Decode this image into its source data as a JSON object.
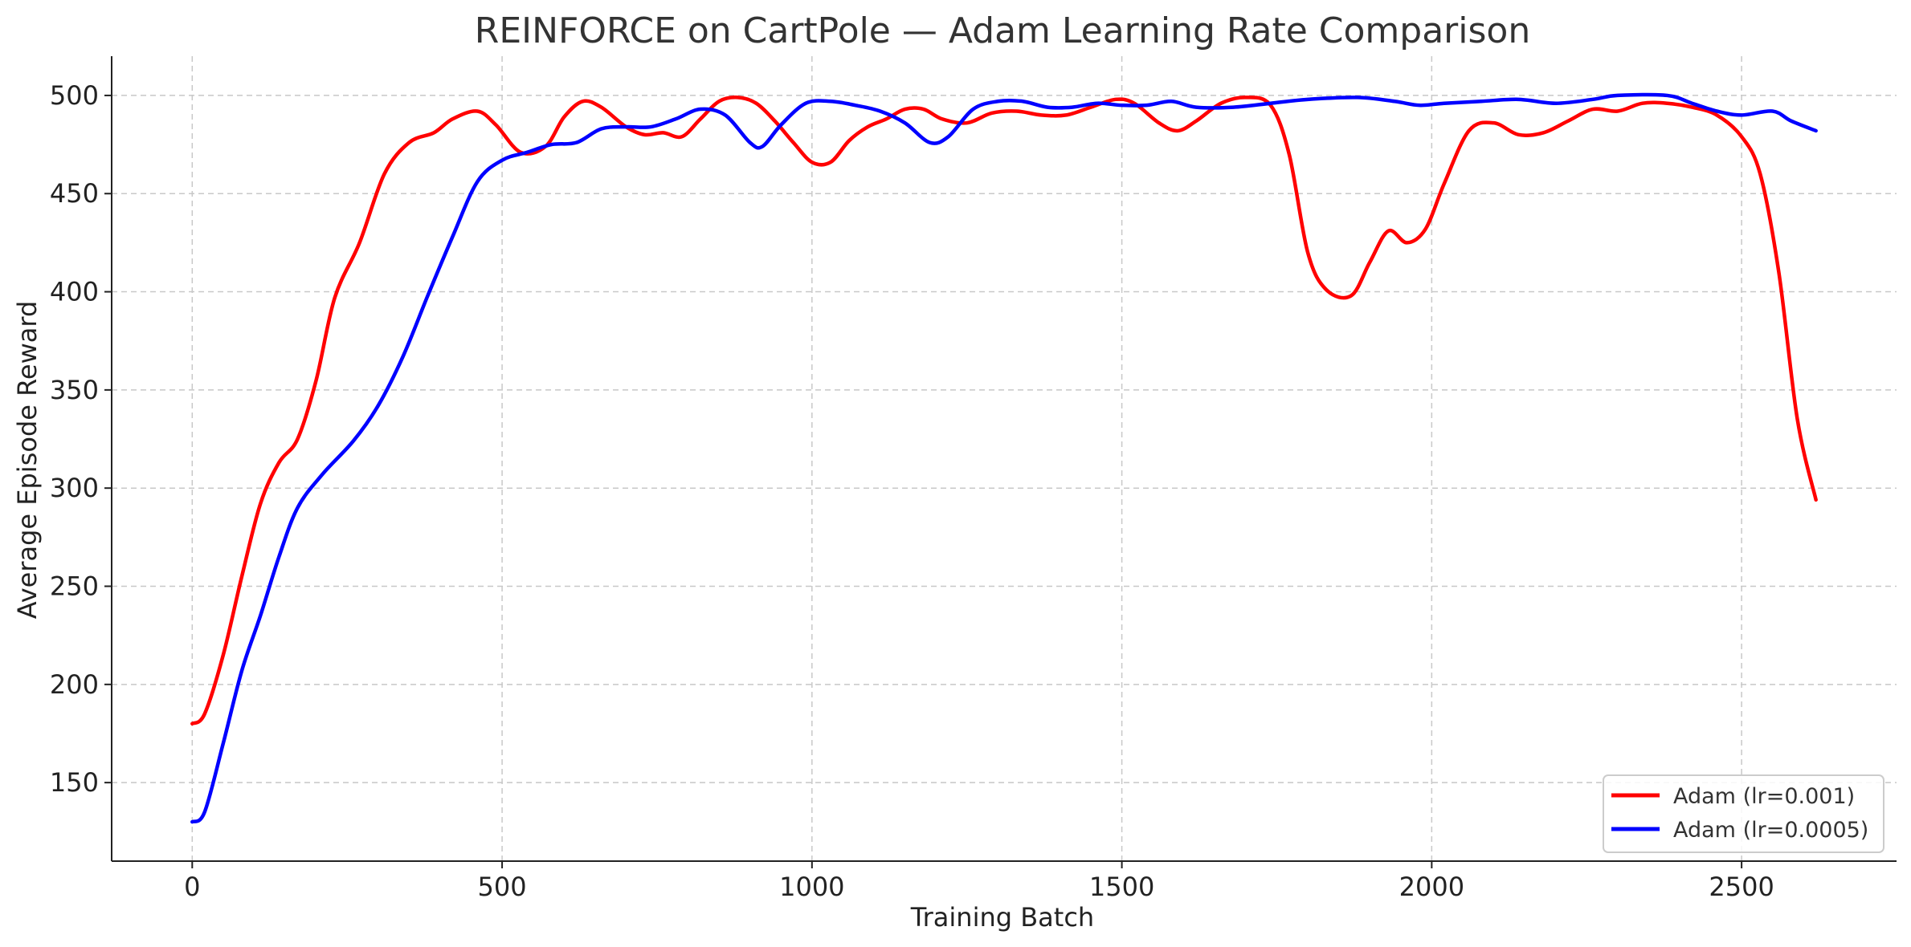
{
  "chart_data": {
    "type": "line",
    "title": "REINFORCE on CartPole — Adam Learning Rate Comparison",
    "xlabel": "Training Batch",
    "ylabel": "Average Episode Reward",
    "xlim": [
      -130,
      2750
    ],
    "ylim": [
      110,
      520
    ],
    "xticks": [
      0,
      500,
      1000,
      1500,
      2000,
      2500
    ],
    "yticks": [
      150,
      200,
      250,
      300,
      350,
      400,
      450,
      500
    ],
    "grid": true,
    "legend_position": "lower-right",
    "series": [
      {
        "name": "Adam (lr=0.001)",
        "color": "#ff0000",
        "points": [
          [
            0,
            180
          ],
          [
            20,
            185
          ],
          [
            50,
            215
          ],
          [
            80,
            255
          ],
          [
            110,
            292
          ],
          [
            140,
            313
          ],
          [
            170,
            325
          ],
          [
            200,
            355
          ],
          [
            230,
            397
          ],
          [
            270,
            425
          ],
          [
            310,
            460
          ],
          [
            350,
            476
          ],
          [
            390,
            481
          ],
          [
            420,
            488
          ],
          [
            460,
            492
          ],
          [
            490,
            485
          ],
          [
            530,
            471
          ],
          [
            570,
            474
          ],
          [
            600,
            489
          ],
          [
            630,
            497
          ],
          [
            660,
            494
          ],
          [
            700,
            484
          ],
          [
            730,
            480
          ],
          [
            760,
            481
          ],
          [
            790,
            479
          ],
          [
            820,
            488
          ],
          [
            850,
            497
          ],
          [
            880,
            499
          ],
          [
            910,
            496
          ],
          [
            940,
            487
          ],
          [
            970,
            476
          ],
          [
            1000,
            466
          ],
          [
            1030,
            466
          ],
          [
            1060,
            477
          ],
          [
            1090,
            484
          ],
          [
            1120,
            488
          ],
          [
            1150,
            493
          ],
          [
            1180,
            493
          ],
          [
            1210,
            488
          ],
          [
            1250,
            486
          ],
          [
            1290,
            491
          ],
          [
            1330,
            492
          ],
          [
            1370,
            490
          ],
          [
            1410,
            490
          ],
          [
            1450,
            494
          ],
          [
            1490,
            498
          ],
          [
            1520,
            496
          ],
          [
            1560,
            486
          ],
          [
            1590,
            482
          ],
          [
            1620,
            487
          ],
          [
            1660,
            496
          ],
          [
            1700,
            499
          ],
          [
            1740,
            495
          ],
          [
            1770,
            470
          ],
          [
            1800,
            420
          ],
          [
            1830,
            401
          ],
          [
            1870,
            398
          ],
          [
            1900,
            415
          ],
          [
            1930,
            431
          ],
          [
            1960,
            425
          ],
          [
            1990,
            432
          ],
          [
            2020,
            455
          ],
          [
            2060,
            482
          ],
          [
            2100,
            486
          ],
          [
            2140,
            480
          ],
          [
            2180,
            481
          ],
          [
            2220,
            487
          ],
          [
            2260,
            493
          ],
          [
            2300,
            492
          ],
          [
            2340,
            496
          ],
          [
            2380,
            496
          ],
          [
            2420,
            494
          ],
          [
            2460,
            490
          ],
          [
            2500,
            479
          ],
          [
            2530,
            460
          ],
          [
            2560,
            410
          ],
          [
            2590,
            335
          ],
          [
            2620,
            294
          ]
        ]
      },
      {
        "name": "Adam (lr=0.0005)",
        "color": "#0000ff",
        "points": [
          [
            0,
            130
          ],
          [
            20,
            135
          ],
          [
            50,
            170
          ],
          [
            80,
            207
          ],
          [
            110,
            235
          ],
          [
            140,
            265
          ],
          [
            170,
            290
          ],
          [
            210,
            307
          ],
          [
            260,
            324
          ],
          [
            300,
            342
          ],
          [
            340,
            367
          ],
          [
            380,
            398
          ],
          [
            420,
            428
          ],
          [
            460,
            456
          ],
          [
            500,
            467
          ],
          [
            540,
            471
          ],
          [
            580,
            475
          ],
          [
            620,
            476
          ],
          [
            660,
            483
          ],
          [
            700,
            484
          ],
          [
            740,
            484
          ],
          [
            780,
            488
          ],
          [
            820,
            493
          ],
          [
            860,
            490
          ],
          [
            900,
            476
          ],
          [
            920,
            474
          ],
          [
            950,
            485
          ],
          [
            990,
            496
          ],
          [
            1030,
            497
          ],
          [
            1070,
            495
          ],
          [
            1110,
            492
          ],
          [
            1150,
            486
          ],
          [
            1190,
            476
          ],
          [
            1220,
            479
          ],
          [
            1260,
            493
          ],
          [
            1300,
            497
          ],
          [
            1340,
            497
          ],
          [
            1380,
            494
          ],
          [
            1420,
            494
          ],
          [
            1460,
            496
          ],
          [
            1500,
            495
          ],
          [
            1540,
            495
          ],
          [
            1580,
            497
          ],
          [
            1620,
            494
          ],
          [
            1680,
            494
          ],
          [
            1740,
            496
          ],
          [
            1800,
            498
          ],
          [
            1880,
            499
          ],
          [
            1940,
            497
          ],
          [
            1980,
            495
          ],
          [
            2020,
            496
          ],
          [
            2080,
            497
          ],
          [
            2140,
            498
          ],
          [
            2200,
            496
          ],
          [
            2260,
            498
          ],
          [
            2300,
            500
          ],
          [
            2380,
            500
          ],
          [
            2420,
            496
          ],
          [
            2460,
            492
          ],
          [
            2500,
            490
          ],
          [
            2550,
            492
          ],
          [
            2580,
            487
          ],
          [
            2620,
            482
          ]
        ]
      }
    ]
  }
}
